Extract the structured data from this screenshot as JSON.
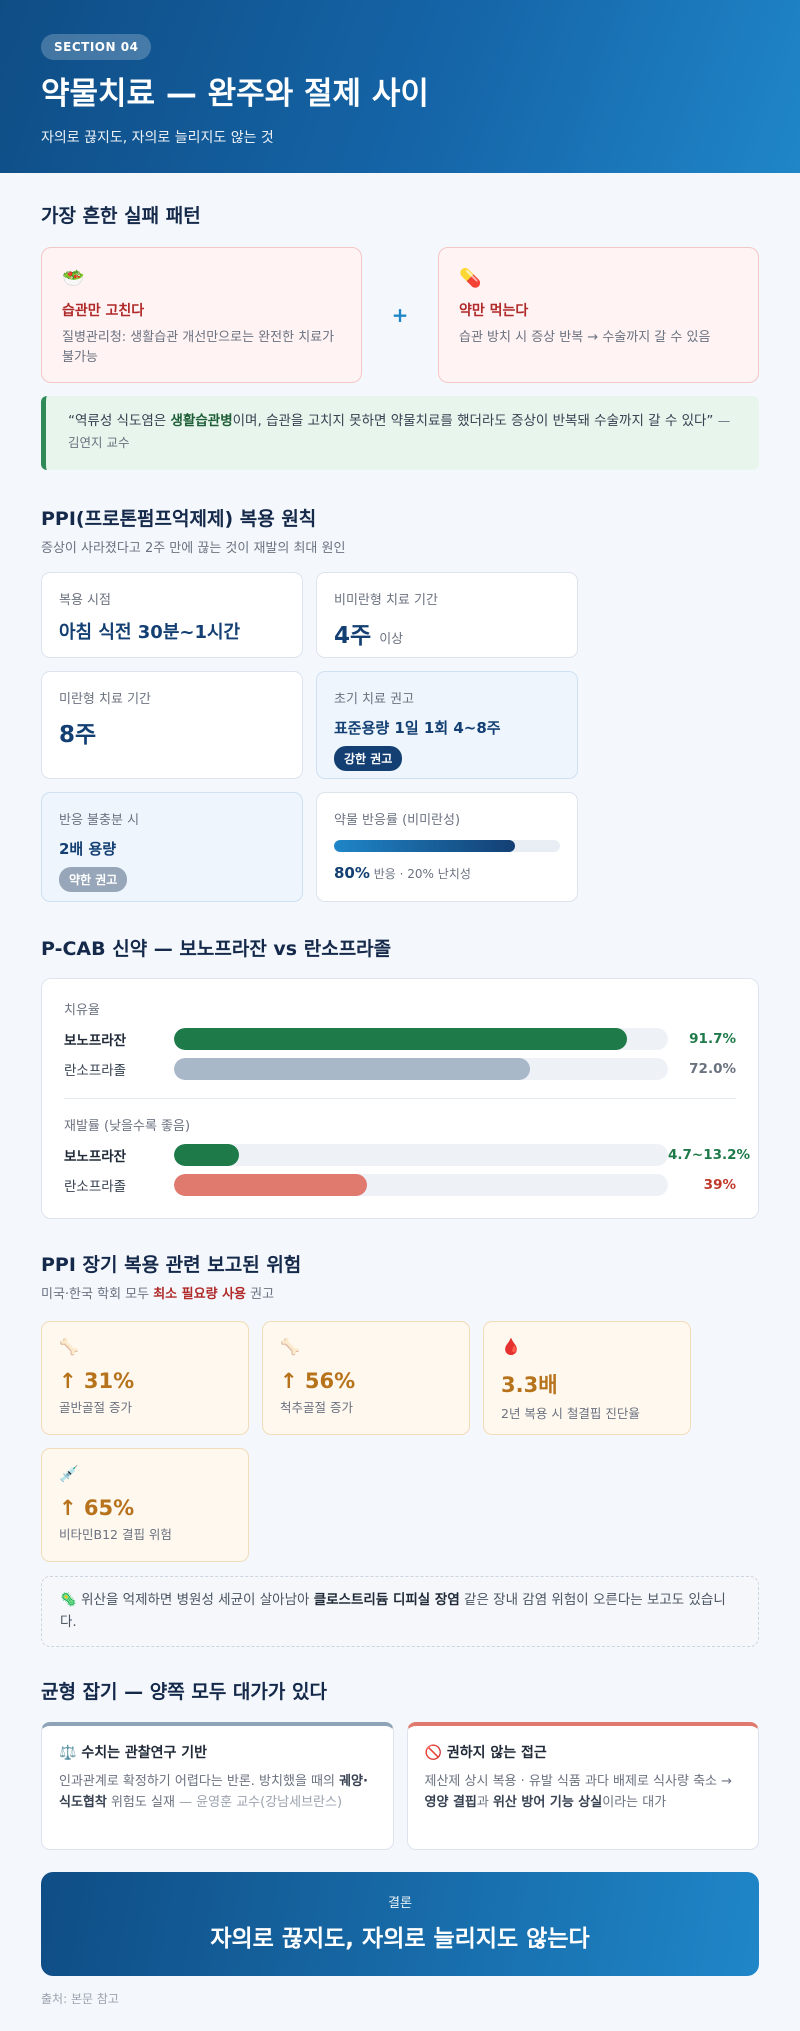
{
  "hero": {
    "section": "SECTION 04",
    "title": "약물치료 — 완주와 절제 사이",
    "subtitle": "자의로 끊지도, 자의로 늘리지도 않는 것"
  },
  "fail": {
    "heading": "가장 흔한 실패 패턴",
    "cards": [
      {
        "icon": "salad-icon",
        "glyph": "🥗",
        "title": "습관만 고친다",
        "text": "질병관리청: 생활습관 개선만으로는 완전한 치료가 불가능"
      },
      {
        "icon": "pill-icon",
        "glyph": "💊",
        "title": "약만 먹는다",
        "text": "습관 방치 시 증상 반복 → 수술까지 갈 수 있음"
      }
    ],
    "plus": "+",
    "quote_pre": "“역류성 식도염은 ",
    "quote_strong": "생활습관병",
    "quote_post": "이며, 습관을 고치지 못하면 약물치료를 했더라도 증상이 반복돼 수술까지 갈 수 있다”",
    "quote_author": "— 김연지 교수"
  },
  "ppi": {
    "heading": "PPI(프로톤펌프억제제) 복용 원칙",
    "desc": "증상이 사라졌다고 2주 만에 끊는 것이 재발의 최대 원인",
    "timing_label": "복용 시점",
    "timing_value": "아침 식전 30분~1시간",
    "nonerosive_label": "비미란형 치료 기간",
    "nonerosive_value": "4주",
    "nonerosive_suffix": "이상",
    "erosive_label": "미란형 치료 기간",
    "erosive_value": "8주",
    "initial_label": "초기 치료 권고",
    "initial_value": "표준용량 1일 1회 4~8주",
    "initial_badge": "강한 권고",
    "insufficient_label": "반응 불충분 시",
    "insufficient_value": "2배 용량",
    "insufficient_badge": "약한 권고",
    "response_label": "약물 반응률 (비미란성)",
    "response_rate": 80,
    "response_value": "80%",
    "response_tail": "반응 · 20% 난치성"
  },
  "pcab": {
    "heading": "P-CAB 신약 — 보노프라잔 vs 란소프라졸",
    "cure_label": "치유율",
    "relapse_label": "재발률 (낮을수록 좋음)",
    "cure": [
      {
        "name": "보노프라잔",
        "value": 91.7,
        "display": "91.7%",
        "color": "#1f7a4a"
      },
      {
        "name": "란소프라졸",
        "value": 72.0,
        "display": "72.0%",
        "color": "#a9b8c9"
      }
    ],
    "relapse": [
      {
        "name": "보노프라잔",
        "value": 13.2,
        "display": "4.7~13.2%",
        "color": "#1f7a4a"
      },
      {
        "name": "란소프라졸",
        "value": 39,
        "display": "39%",
        "color": "#e07a6e"
      }
    ]
  },
  "risks": {
    "heading": "PPI 장기 복용 관련 보고된 위험",
    "desc_pre": "미국·한국 학회 모두 ",
    "desc_strong": "최소 필요량 사용",
    "desc_post": " 권고",
    "items": [
      {
        "icon": "bone-icon",
        "glyph": "🦴",
        "value": "↑ 31%",
        "caption": "골반골절 증가"
      },
      {
        "icon": "bone-icon",
        "glyph": "🦴",
        "value": "↑ 56%",
        "caption": "척추골절 증가"
      },
      {
        "icon": "blood-drop-icon",
        "glyph": "🩸",
        "value": "3.3배",
        "caption": "2년 복용 시 철결핍 진단율"
      },
      {
        "icon": "syringe-icon",
        "glyph": "💉",
        "value": "↑ 65%",
        "caption": "비타민B12 결핍 위험"
      }
    ],
    "note_glyph": "🦠",
    "note_pre": "위산을 억제하면 병원성 세균이 살아남아 ",
    "note_strong": "클로스트리듐 디피실 장염",
    "note_post": " 같은 장내 감염 위험이 오른다는 보고도 있습니다."
  },
  "balance": {
    "heading": "균형 잡기 — 양쪽 모두 대가가 있다",
    "left_glyph": "⚖️",
    "left_title": "수치는 관찰연구 기반",
    "left_pre": "인과관계로 확정하기 어렵다는 반론. 방치했을 때의 ",
    "left_strong": "궤양·식도협착",
    "left_post": " 위험도 실재 ",
    "left_author": "— 윤영훈 교수(강남세브란스)",
    "right_glyph": "🚫",
    "right_title": "권하지 않는 접근",
    "right_pre": "제산제 상시 복용 · 유발 식품 과다 배제로 식사량 축소 → ",
    "right_strong1": "영양 결핍",
    "right_mid": "과 ",
    "right_strong2": "위산 방어 기능 상실",
    "right_post": "이라는 대가"
  },
  "conclusion": {
    "kicker": "결론",
    "message": "자의로 끊지도, 자의로 늘리지도 않는다"
  },
  "source": "출처: 본문 참고"
}
